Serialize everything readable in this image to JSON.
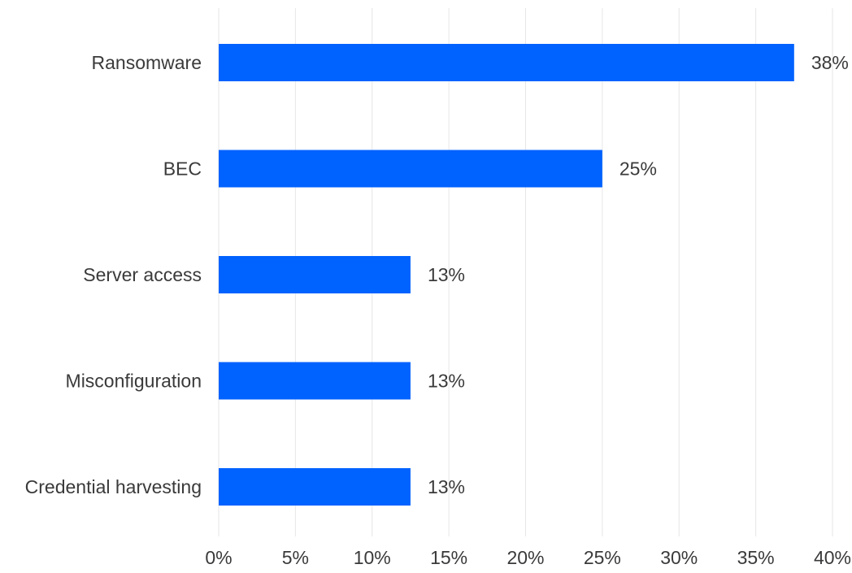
{
  "chart_data": {
    "type": "bar",
    "orientation": "horizontal",
    "categories": [
      "Ransomware",
      "BEC",
      "Server access",
      "Misconfiguration",
      "Credential harvesting"
    ],
    "values": [
      37.5,
      25,
      12.5,
      12.5,
      12.5
    ],
    "value_labels": [
      "38%",
      "25%",
      "13%",
      "13%",
      "13%"
    ],
    "xlim": [
      0,
      40
    ],
    "x_ticks": [
      0,
      5,
      10,
      15,
      20,
      25,
      30,
      35,
      40
    ],
    "x_tick_labels": [
      "0%",
      "5%",
      "10%",
      "15%",
      "20%",
      "25%",
      "30%",
      "35%",
      "40%"
    ],
    "title": "",
    "xlabel": "",
    "ylabel": "",
    "grid": "vertical",
    "legend": "none",
    "bar_color": "#0062ff",
    "grid_color": "#e6e6e6",
    "text_color": "#3a3a3a"
  }
}
